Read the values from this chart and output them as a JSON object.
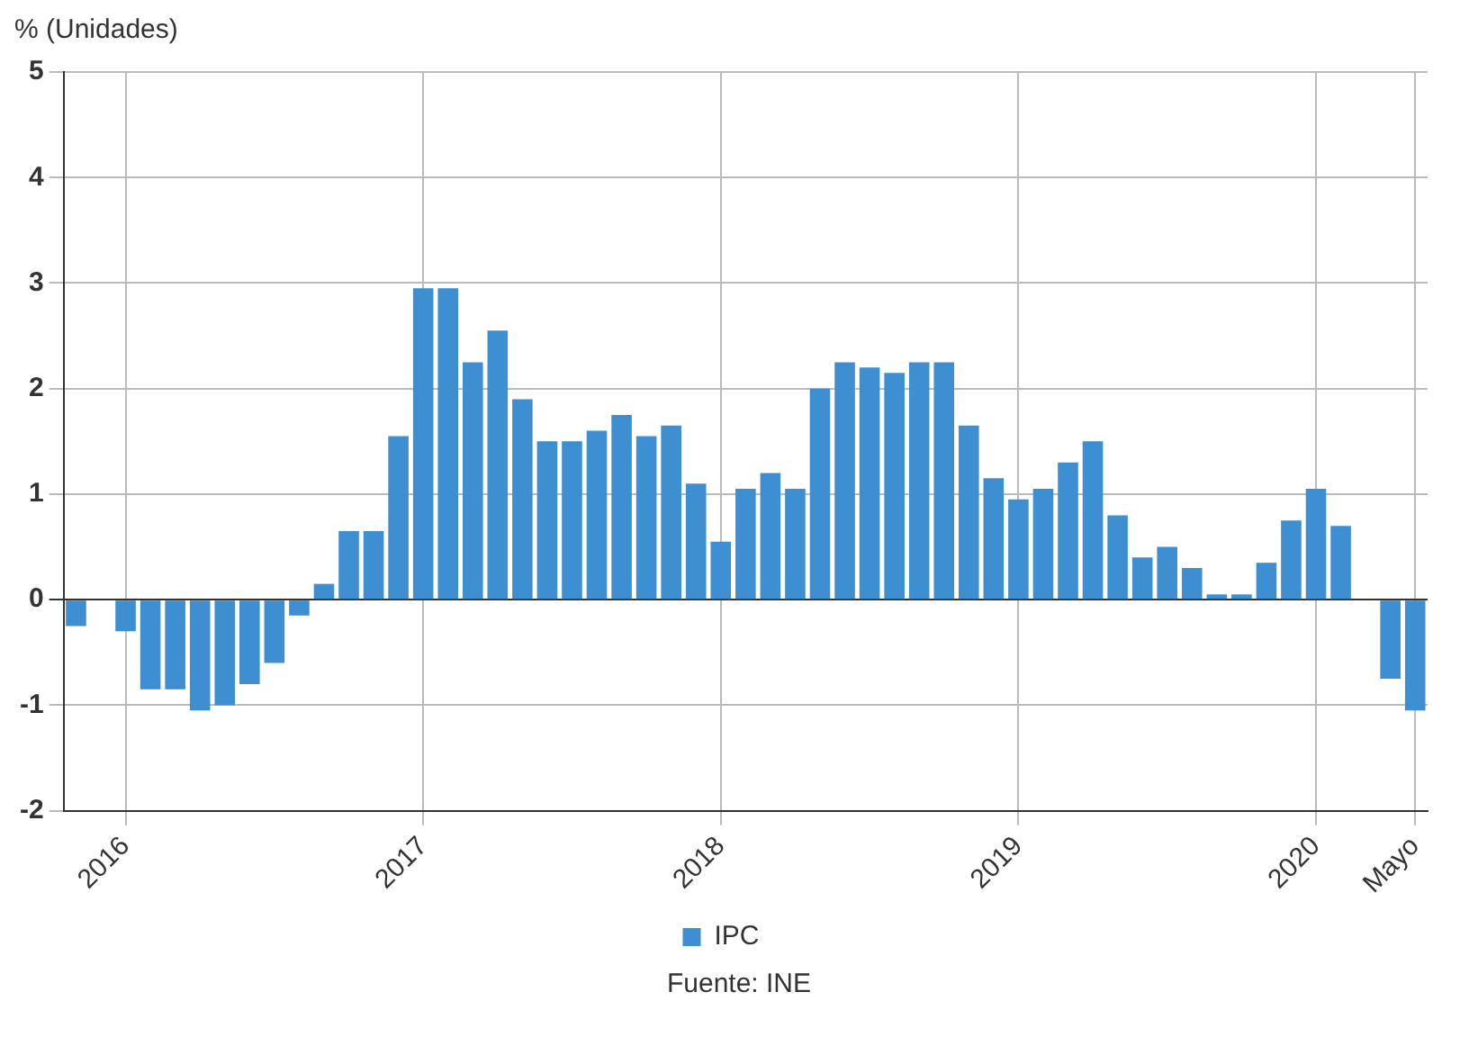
{
  "chart_data": {
    "type": "bar",
    "ylabel": "% (Unidades)",
    "categories": [
      null,
      null,
      "2016",
      null,
      null,
      null,
      null,
      null,
      null,
      null,
      null,
      null,
      null,
      null,
      "2017",
      null,
      null,
      null,
      null,
      null,
      null,
      null,
      null,
      null,
      null,
      null,
      "2018",
      null,
      null,
      null,
      null,
      null,
      null,
      null,
      null,
      null,
      null,
      null,
      "2019",
      null,
      null,
      null,
      null,
      null,
      null,
      null,
      null,
      null,
      null,
      null,
      "2020",
      null,
      null,
      null,
      "Mayo"
    ],
    "series": [
      {
        "name": "IPC",
        "color": "#3d8fd1",
        "values": [
          -0.25,
          0,
          -0.3,
          -0.85,
          -0.85,
          -1.05,
          -1.0,
          -0.8,
          -0.6,
          -0.15,
          0.15,
          0.65,
          0.65,
          1.55,
          2.95,
          2.95,
          2.25,
          2.55,
          1.9,
          1.5,
          1.5,
          1.6,
          1.75,
          1.55,
          1.65,
          1.1,
          0.55,
          1.05,
          1.2,
          1.05,
          2.0,
          2.25,
          2.2,
          2.15,
          2.25,
          2.25,
          1.65,
          1.15,
          0.95,
          1.05,
          1.3,
          1.5,
          0.8,
          0.4,
          0.5,
          0.3,
          0.05,
          0.05,
          0.35,
          0.75,
          1.05,
          0.7,
          0,
          -0.75,
          -1.05
        ]
      }
    ],
    "ylim": [
      -2,
      5
    ],
    "yticks": [
      -2,
      -1,
      0,
      1,
      2,
      3,
      4,
      5
    ],
    "grid": true,
    "legend": "bottom",
    "annotations": [
      "Fuente: INE"
    ]
  }
}
